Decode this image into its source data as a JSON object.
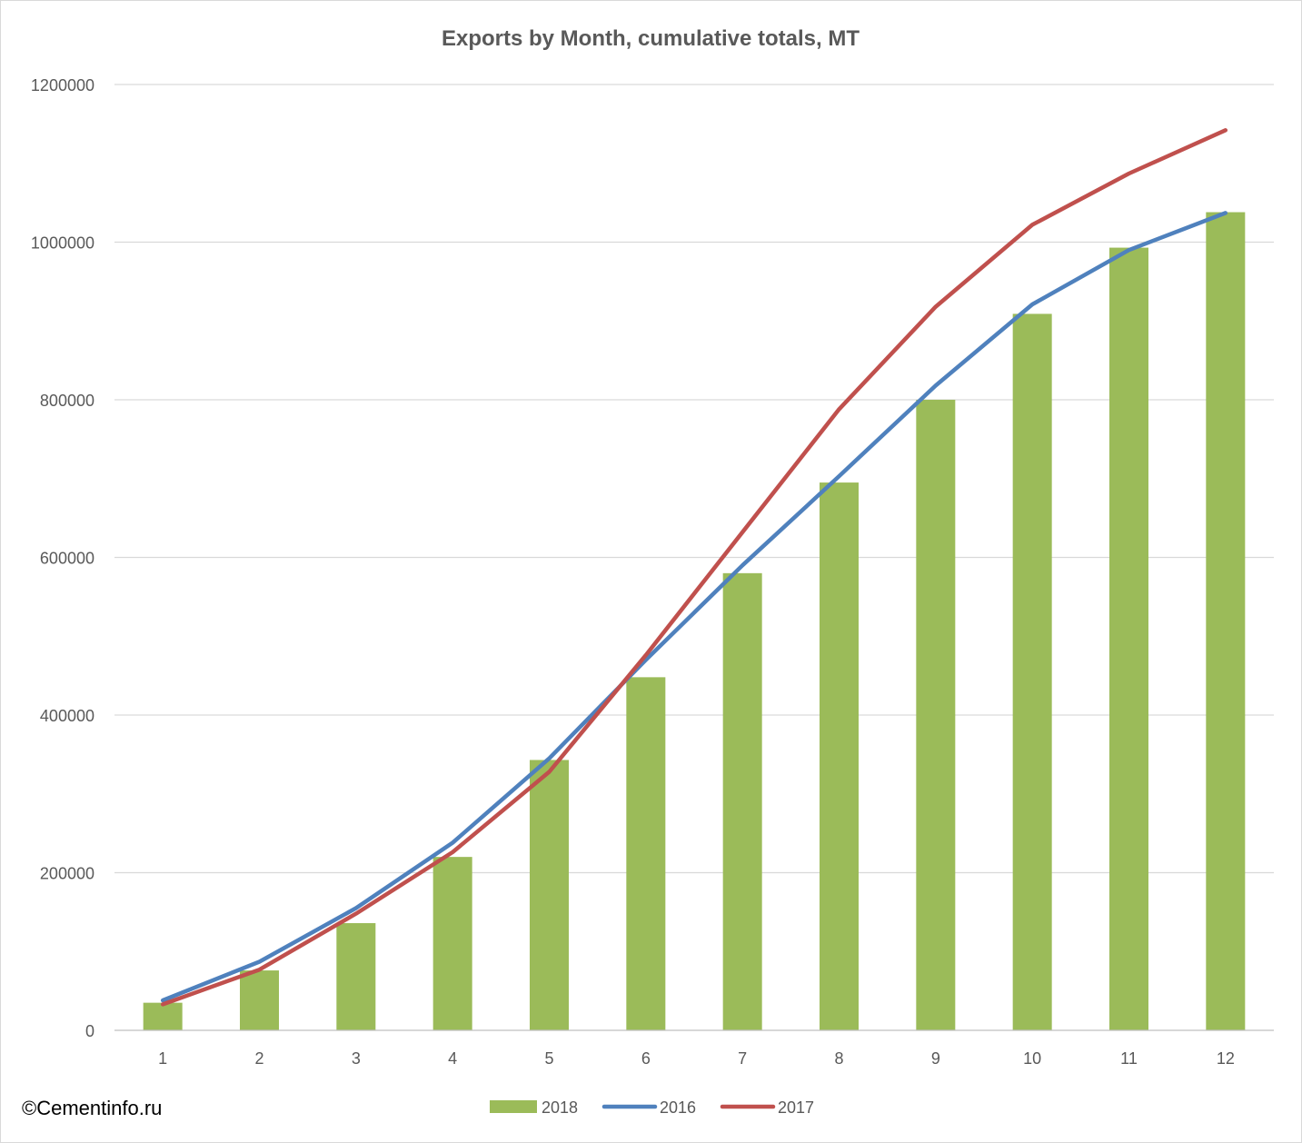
{
  "chart_data": {
    "type": "bar",
    "title": "Exports by Month, cumulative totals, MT",
    "xlabel": "",
    "ylabel": "",
    "categories": [
      "1",
      "2",
      "3",
      "4",
      "5",
      "6",
      "7",
      "8",
      "9",
      "10",
      "11",
      "12"
    ],
    "ylim": [
      0,
      1200000
    ],
    "yticks": [
      0,
      200000,
      400000,
      600000,
      800000,
      1000000,
      1200000
    ],
    "ytick_labels": [
      "0",
      "200000",
      "400000",
      "600000",
      "800000",
      "1000000",
      "1200000"
    ],
    "grid": true,
    "legend_position": "bottom",
    "series": [
      {
        "name": "2018",
        "type": "bar",
        "color": "#9bbb59",
        "values": [
          35000,
          76000,
          136000,
          220000,
          343000,
          448000,
          580000,
          695000,
          800000,
          909000,
          993000,
          1038000
        ]
      },
      {
        "name": "2016",
        "type": "line",
        "color": "#4f81bd",
        "values": [
          38000,
          87000,
          155000,
          238000,
          345000,
          470000,
          590000,
          703000,
          818000,
          921000,
          990000,
          1037000
        ]
      },
      {
        "name": "2017",
        "type": "line",
        "color": "#c0504d",
        "values": [
          33000,
          77000,
          148000,
          226000,
          328000,
          476000,
          632000,
          788000,
          918000,
          1022000,
          1087000,
          1142000
        ]
      }
    ]
  },
  "credit": "©Cementinfo.ru"
}
